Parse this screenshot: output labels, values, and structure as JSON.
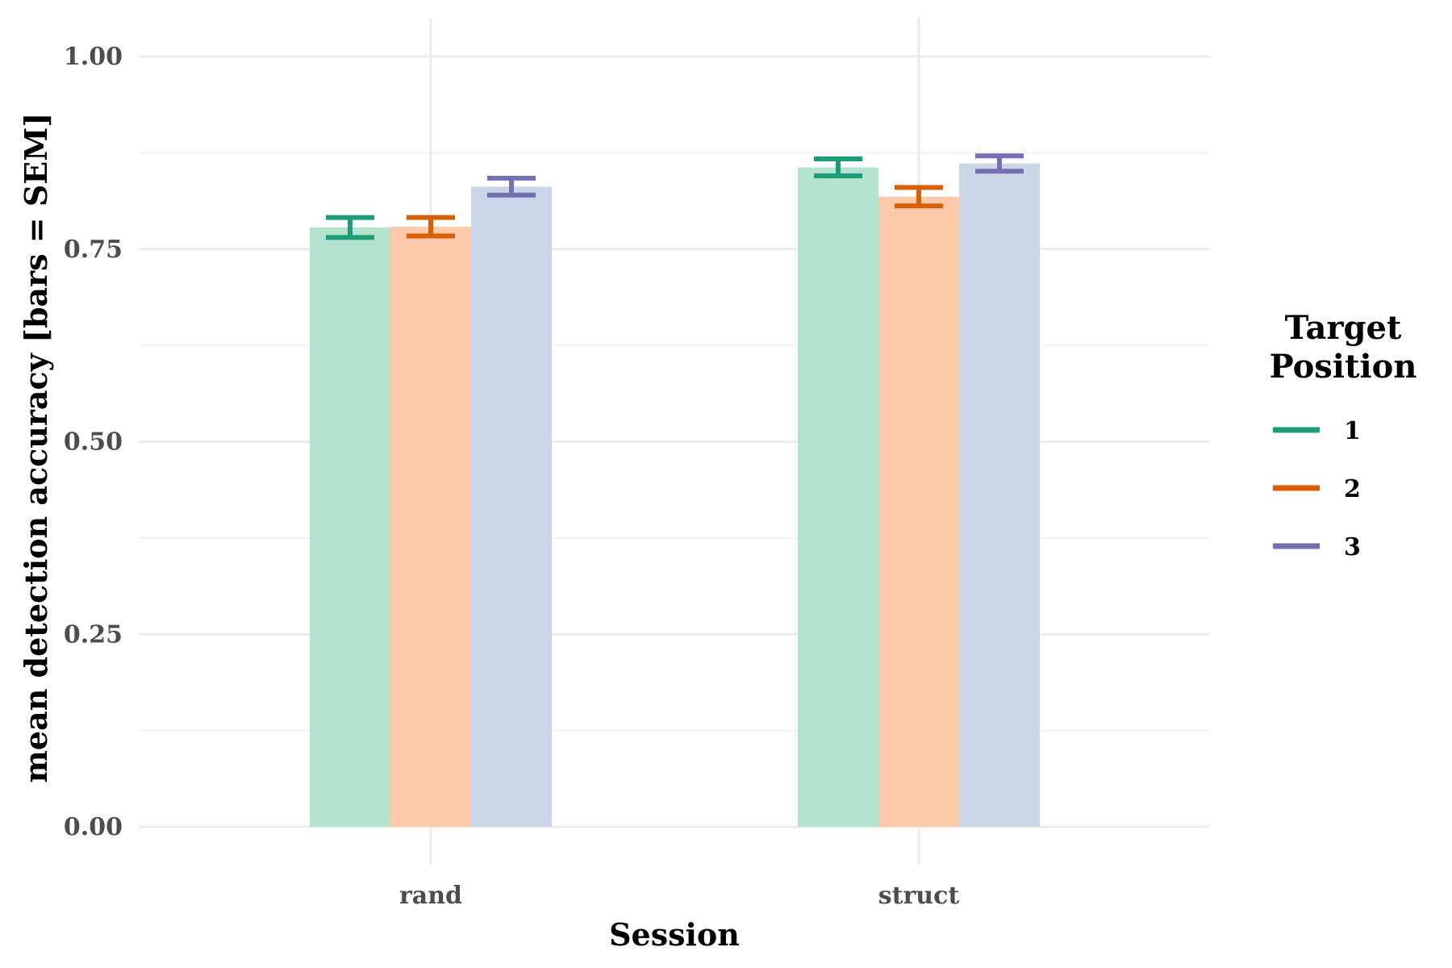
{
  "chart_data": {
    "type": "bar",
    "title": "",
    "xlabel": "Session",
    "ylabel": "mean detection accuracy [bars = SEM]",
    "categories": [
      "rand",
      "struct"
    ],
    "ylim": [
      0,
      1.05
    ],
    "yticks": [
      0.0,
      0.25,
      0.5,
      0.75,
      1.0
    ],
    "ytick_labels": [
      "0.00",
      "0.25",
      "0.50",
      "0.75",
      "1.00"
    ],
    "grid": true,
    "legend": {
      "title_lines": [
        "Target",
        "Position"
      ],
      "placement": "right"
    },
    "series": [
      {
        "name": "1",
        "values": [
          0.778,
          0.856
        ],
        "sem": [
          0.013,
          0.011
        ],
        "bar_color": "#b3e3cc",
        "line_color": "#1b9e77"
      },
      {
        "name": "2",
        "values": [
          0.779,
          0.818
        ],
        "sem": [
          0.012,
          0.012
        ],
        "bar_color": "#fdcbab",
        "line_color": "#d95f02"
      },
      {
        "name": "3",
        "values": [
          0.831,
          0.861
        ],
        "sem": [
          0.011,
          0.01
        ],
        "bar_color": "#cbd5e8",
        "line_color": "#7570b3"
      }
    ]
  }
}
